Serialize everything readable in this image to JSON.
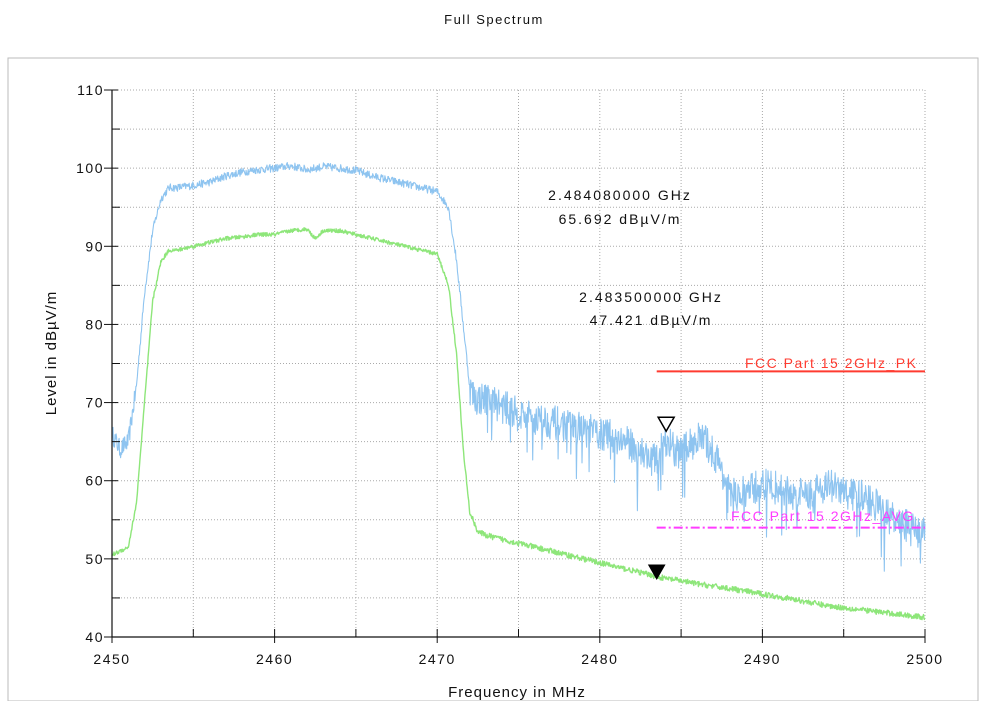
{
  "chart_data": {
    "type": "line",
    "title": "Full Spectrum",
    "xlabel": "Frequency in MHz",
    "ylabel": "Level in dBµV/m",
    "xlim": [
      2450,
      2500
    ],
    "ylim": [
      40,
      110
    ],
    "x_ticks": [
      2450,
      2460,
      2470,
      2480,
      2490,
      2500
    ],
    "y_ticks": [
      40,
      50,
      60,
      70,
      80,
      90,
      100,
      110
    ],
    "grid": true,
    "series": [
      {
        "color": "#8ec4f0",
        "x": [
          2450,
          2450.5,
          2451,
          2451.5,
          2452,
          2452.5,
          2453,
          2453.5,
          2454,
          2455,
          2456,
          2457,
          2458,
          2459,
          2460,
          2461,
          2462,
          2463,
          2464,
          2465,
          2466,
          2467,
          2468,
          2469,
          2470,
          2470.7,
          2471.2,
          2471.6,
          2472,
          2472.3,
          2473,
          2474,
          2475,
          2476,
          2477,
          2478,
          2479,
          2480,
          2481,
          2482,
          2483,
          2483.5,
          2484,
          2484.5,
          2485,
          2485.5,
          2486,
          2486.5,
          2487,
          2487.5,
          2488,
          2489,
          2490,
          2491,
          2492,
          2493,
          2494,
          2495,
          2496,
          2497,
          2498,
          2499,
          2500
        ],
        "y": [
          66,
          64,
          65,
          72,
          84,
          92,
          96,
          97.5,
          97.5,
          97.8,
          98.2,
          99,
          99.5,
          99.8,
          100,
          100.3,
          99.8,
          100.2,
          100,
          99.7,
          99,
          98.5,
          98,
          97.5,
          97,
          95,
          88,
          80,
          72,
          70.5,
          70.5,
          69.5,
          68.5,
          68,
          67.5,
          67,
          66.5,
          66,
          65.5,
          64.5,
          63,
          62.5,
          65.5,
          64,
          63.5,
          64.5,
          65.5,
          65,
          63.5,
          61.5,
          58,
          58.5,
          59.5,
          59,
          58,
          58.5,
          59.5,
          58.5,
          58,
          57,
          55,
          54,
          53
        ]
      },
      {
        "color": "#8ee67a",
        "x": [
          2450,
          2450.5,
          2451,
          2451.5,
          2452,
          2452.5,
          2453,
          2453.5,
          2454,
          2455,
          2456,
          2457,
          2458,
          2459,
          2460,
          2461,
          2462,
          2462.5,
          2463,
          2464,
          2465,
          2466,
          2467,
          2468,
          2469,
          2470,
          2470.7,
          2471.2,
          2471.6,
          2472,
          2472.5,
          2473,
          2474,
          2475,
          2476,
          2477,
          2478,
          2479,
          2480,
          2481,
          2482,
          2483,
          2484,
          2485,
          2486,
          2488,
          2490,
          2492,
          2494,
          2496,
          2498,
          2500
        ],
        "y": [
          50.5,
          51,
          51.5,
          57,
          70,
          83,
          88,
          89.5,
          89.5,
          90,
          90.5,
          91,
          91.2,
          91.5,
          91.5,
          92,
          92.2,
          91,
          92,
          92,
          91.5,
          91,
          90.5,
          90,
          89.5,
          89,
          85,
          76,
          64,
          56,
          53.5,
          53,
          52.5,
          52,
          51.5,
          51,
          50.5,
          50,
          49.5,
          49,
          48.5,
          48,
          47.5,
          47.2,
          46.8,
          46.2,
          45.5,
          44.8,
          44,
          43.5,
          43,
          42.5
        ]
      }
    ],
    "limit_lines": [
      {
        "name": "FCC Part 15 2GHz_PK",
        "color": "#ff3b30",
        "style": "solid",
        "x_start": 2483.5,
        "x_end": 2500,
        "y": 74
      },
      {
        "name": "FCC Part 15 2GHz_AVG",
        "color": "#ff3cff",
        "style": "dash-dot",
        "x_start": 2483.5,
        "x_end": 2500,
        "y": 54
      }
    ],
    "markers": [
      {
        "freq_label": "2.484080000 GHz",
        "level_label": "65.692 dBµV/m",
        "x": 2484.08,
        "y": 65.692,
        "symbol": "open-triangle"
      },
      {
        "freq_label": "2.483500000 GHz",
        "level_label": "47.421 dBµV/m",
        "x": 2483.5,
        "y": 47.421,
        "symbol": "filled-triangle"
      }
    ]
  }
}
